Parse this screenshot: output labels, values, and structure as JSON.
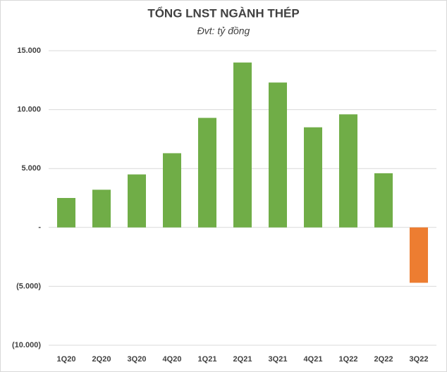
{
  "chart_data": {
    "type": "bar",
    "title": "TỔNG LNST NGÀNH THÉP",
    "subtitle": "Đvt: tỷ đồng",
    "categories": [
      "1Q20",
      "2Q20",
      "3Q20",
      "4Q20",
      "1Q21",
      "2Q21",
      "3Q21",
      "4Q21",
      "1Q22",
      "2Q22",
      "3Q22"
    ],
    "values": [
      2500,
      3200,
      4500,
      6300,
      9300,
      14000,
      12300,
      8500,
      9600,
      4600,
      -4700
    ],
    "colors": [
      "#70ad47",
      "#70ad47",
      "#70ad47",
      "#70ad47",
      "#70ad47",
      "#70ad47",
      "#70ad47",
      "#70ad47",
      "#70ad47",
      "#70ad47",
      "#ed7d31"
    ],
    "ylim": [
      -10000,
      15000
    ],
    "yticks": [
      {
        "value": -10000,
        "label": "(10.000)"
      },
      {
        "value": -5000,
        "label": "(5.000)"
      },
      {
        "value": 0,
        "label": "-"
      },
      {
        "value": 5000,
        "label": "5.000"
      },
      {
        "value": 10000,
        "label": "10.000"
      },
      {
        "value": 15000,
        "label": "15.000"
      }
    ],
    "grid": true
  }
}
